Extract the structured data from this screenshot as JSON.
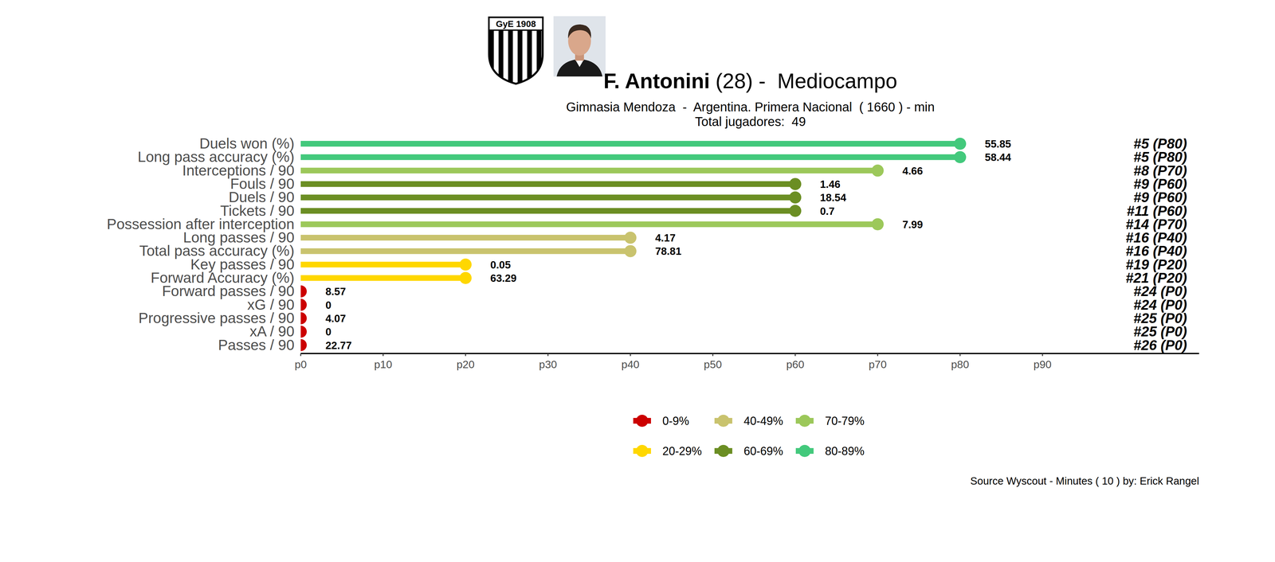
{
  "chart_data": {
    "type": "lollipop",
    "orientation": "horizontal",
    "badge_text": "GyE 1908",
    "title": "F. Antonini",
    "title_detail": "(28) -  Mediocampo",
    "subtitle": "Gimnasia Mendoza  -  Argentina. Primera Nacional  ( 1660 ) - min",
    "subtitle2": "Total jugadores:  49",
    "caption": "Source Wyscout - Minutes ( 10 ) by: Erick Rangel",
    "categories": [
      "Duels won (%)",
      "Long pass accuracy (%)",
      "Interceptions / 90",
      "Fouls / 90",
      "Duels / 90",
      "Tickets / 90",
      "Possession after interception",
      "Long passes / 90",
      "Total pass accuracy (%)",
      "Key passes / 90",
      "Forward Accuracy (%)",
      "Forward passes / 90",
      "xG / 90",
      "Progressive passes / 90",
      "xA / 90",
      "Passes / 90"
    ],
    "values": [
      80,
      80,
      70,
      60,
      60,
      60,
      70,
      40,
      40,
      20,
      20,
      0,
      0,
      0,
      0,
      0
    ],
    "stat_values": [
      55.85,
      58.44,
      4.66,
      1.46,
      18.54,
      0.7,
      7.99,
      4.17,
      78.81,
      0.05,
      63.29,
      8.57,
      0,
      4.07,
      0,
      22.77
    ],
    "rank_labels": [
      "#5 (P80)",
      "#5 (P80)",
      "#8 (P70)",
      "#9 (P60)",
      "#9 (P60)",
      "#11 (P60)",
      "#14 (P70)",
      "#16 (P40)",
      "#16 (P40)",
      "#19 (P20)",
      "#21 (P20)",
      "#24 (P0)",
      "#24 (P0)",
      "#25 (P0)",
      "#25 (P0)",
      "#26 (P0)"
    ],
    "colors": [
      "#43c97c",
      "#43c97c",
      "#9cc85a",
      "#6b8e23",
      "#6b8e23",
      "#6b8e23",
      "#9cc85a",
      "#c9c36e",
      "#c9c36e",
      "#ffd700",
      "#ffd700",
      "#cc0000",
      "#cc0000",
      "#cc0000",
      "#cc0000",
      "#cc0000"
    ],
    "series": [
      {
        "name": "0-9%",
        "color": "#cc0000"
      },
      {
        "name": "20-29%",
        "color": "#ffd700"
      },
      {
        "name": "40-49%",
        "color": "#c9c36e"
      },
      {
        "name": "60-69%",
        "color": "#6b8e23"
      },
      {
        "name": "70-79%",
        "color": "#9cc85a"
      },
      {
        "name": "80-89%",
        "color": "#43c97c"
      }
    ],
    "xlim": [
      0,
      109
    ],
    "xticks": [
      {
        "value": 0,
        "label": "p0"
      },
      {
        "value": 10,
        "label": "p10"
      },
      {
        "value": 20,
        "label": "p20"
      },
      {
        "value": 30,
        "label": "p30"
      },
      {
        "value": 40,
        "label": "p40"
      },
      {
        "value": 50,
        "label": "p50"
      },
      {
        "value": 60,
        "label": "p60"
      },
      {
        "value": 70,
        "label": "p70"
      },
      {
        "value": 80,
        "label": "p80"
      },
      {
        "value": 90,
        "label": "p90"
      }
    ],
    "grid": false,
    "legend": "bottom",
    "data_labels": false
  }
}
